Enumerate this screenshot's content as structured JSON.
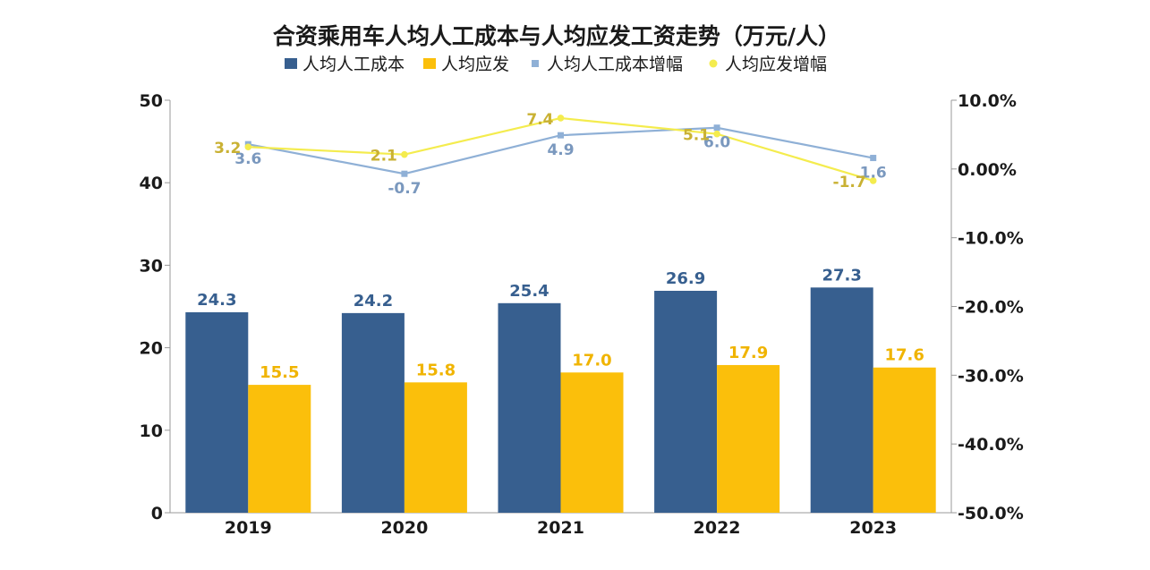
{
  "chart_data": {
    "type": "bar",
    "title": "合资乘用车人均人工成本与人均应发工资走势（万元/人）",
    "categories": [
      "2019",
      "2020",
      "2021",
      "2022",
      "2023"
    ],
    "y_left": {
      "lim": [
        0,
        50
      ],
      "ticks": [
        "0",
        "10",
        "20",
        "30",
        "40",
        "50"
      ]
    },
    "y_right": {
      "lim": [
        -50,
        10
      ],
      "ticks": [
        "-50.0%",
        "-40.0%",
        "-30.0%",
        "-20.0%",
        "-10.0%",
        "0.00%",
        "10.0%"
      ]
    },
    "series": [
      {
        "name": "人均人工成本",
        "kind": "bar",
        "axis": "left",
        "color": "#375F8F",
        "values": [
          24.3,
          24.2,
          25.4,
          26.9,
          27.3
        ],
        "labels": [
          "24.3",
          "24.2",
          "25.4",
          "26.9",
          "27.3"
        ]
      },
      {
        "name": "人均应发",
        "kind": "bar",
        "axis": "left",
        "color": "#FBBF0B",
        "values": [
          15.5,
          15.8,
          17.0,
          17.9,
          17.6
        ],
        "labels": [
          "15.5",
          "15.8",
          "17.0",
          "17.9",
          "17.6"
        ]
      },
      {
        "name": "人均人工成本增幅",
        "kind": "line",
        "axis": "right",
        "color": "#8FB0D6",
        "label_color": "#7A98BE",
        "values": [
          3.6,
          -0.7,
          4.9,
          6.0,
          1.6
        ],
        "labels": [
          "3.6",
          "-0.7",
          "4.9",
          "6.0",
          "1.6"
        ]
      },
      {
        "name": "人均应发增幅",
        "kind": "line",
        "axis": "right",
        "color": "#F4EC4E",
        "label_color": "#C9B133",
        "values": [
          3.2,
          2.1,
          7.4,
          5.1,
          -1.7
        ],
        "labels": [
          "3.2",
          "2.1",
          "7.4",
          "5.1",
          "-1.7"
        ]
      }
    ],
    "legend_position": "top-center",
    "grid": false
  }
}
